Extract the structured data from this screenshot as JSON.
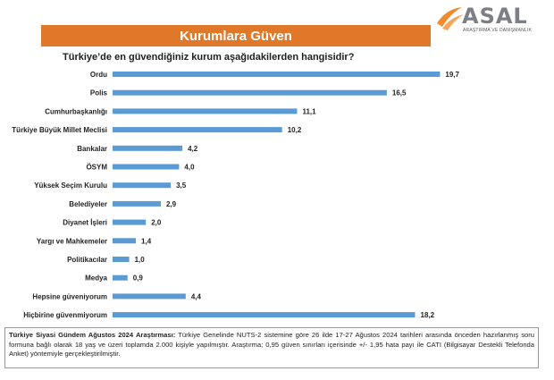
{
  "header": {
    "banner_title": "Kurumlara Güven",
    "question": "Türkiye’de en güvendiğiniz kurum aşağıdakilerden hangisidir?"
  },
  "logo": {
    "word": "ASAL",
    "subtitle": "ARAŞTIRMA VE DANIŞMANLIK",
    "colors": [
      "#f28b2c",
      "#d9dce1"
    ]
  },
  "chart_data": {
    "type": "bar",
    "orientation": "horizontal",
    "categories": [
      "Ordu",
      "Polis",
      "Cumhurbaşkanlığı",
      "Türkiye Büyük Millet Meclisi",
      "Bankalar",
      "ÖSYM",
      "Yüksek Seçim Kurulu",
      "Belediyeler",
      "Diyanet İşleri",
      "Yargı ve Mahkemeler",
      "Politikacılar",
      "Medya",
      "Hepsine güveniyorum",
      "Hiçbirine güvenmiyorum"
    ],
    "values": [
      19.7,
      16.5,
      11.1,
      10.2,
      4.2,
      4.0,
      3.5,
      2.9,
      2.0,
      1.4,
      1.0,
      0.9,
      4.4,
      18.2
    ],
    "value_labels": [
      "19,7",
      "16,5",
      "11,1",
      "10,2",
      "4,2",
      "4,0",
      "3,5",
      "2,9",
      "2,0",
      "1,4",
      "1,0",
      "0,9",
      "4,4",
      "18,2"
    ],
    "bar_color": "#5b9bd5",
    "xlim": [
      0,
      20
    ],
    "grid": false,
    "legend": "none"
  },
  "footnote": {
    "title": "Türkiye Siyasi Gündem Ağustos 2024 Araştırması:",
    "text": " Türkiye Genelinde NUTS-2 sistemine göre 26 ilde 17-27 Ağustos 2024 tarihleri arasında önceden hazırlanmış soru formuna bağlı olarak 18 yaş ve üzeri toplamda 2.000 kişiyle yapılmıştır. Araştırma; 0,95 güven sınırları içerisinde +/- 1,95 hata payı ile CATI (Bilgisayar Destekli Telefonda Anket) yöntemiyle gerçekleştirilmiştir."
  }
}
